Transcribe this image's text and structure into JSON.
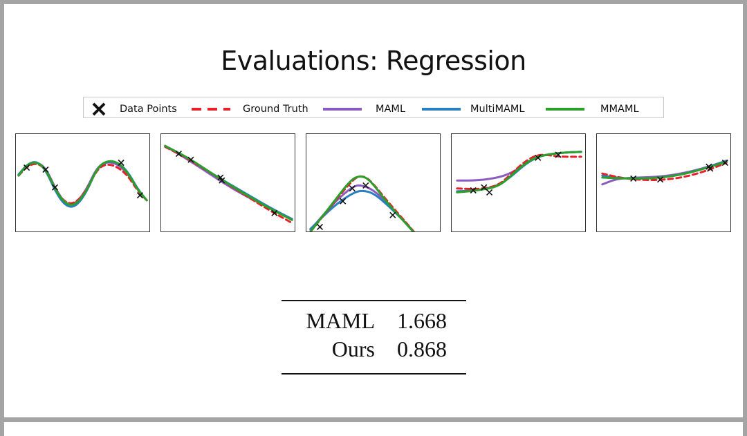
{
  "slide": {
    "title": "Evaluations: Regression"
  },
  "legend": {
    "items": [
      {
        "label": "Data Points",
        "marker": "x",
        "color": "#111111"
      },
      {
        "label": "Ground Truth",
        "marker": "dashed",
        "color": "#e8202a"
      },
      {
        "label": "MAML",
        "marker": "line",
        "color": "#8a5cc2"
      },
      {
        "label": "MultiMAML",
        "marker": "line",
        "color": "#2a7fc0"
      },
      {
        "label": "MMAML",
        "marker": "line",
        "color": "#2aa02a"
      }
    ]
  },
  "results": {
    "rows": [
      {
        "method": "MAML",
        "value": "1.668"
      },
      {
        "method": "Ours",
        "value": "0.868"
      }
    ]
  },
  "chart_data": [
    {
      "type": "line",
      "grid": false,
      "series": [
        {
          "name": "Ground Truth",
          "color": "#e8202a",
          "dash": true,
          "points": [
            [
              0.02,
              0.42
            ],
            [
              0.08,
              0.33
            ],
            [
              0.15,
              0.29
            ],
            [
              0.22,
              0.35
            ],
            [
              0.3,
              0.58
            ],
            [
              0.37,
              0.7
            ],
            [
              0.44,
              0.7
            ],
            [
              0.52,
              0.58
            ],
            [
              0.6,
              0.36
            ],
            [
              0.67,
              0.3
            ],
            [
              0.75,
              0.33
            ],
            [
              0.83,
              0.42
            ],
            [
              0.9,
              0.57
            ],
            [
              0.97,
              0.67
            ]
          ]
        },
        {
          "name": "MAML",
          "color": "#8a5cc2",
          "points": [
            [
              0.02,
              0.41
            ],
            [
              0.08,
              0.32
            ],
            [
              0.15,
              0.28
            ],
            [
              0.22,
              0.34
            ],
            [
              0.3,
              0.57
            ],
            [
              0.37,
              0.71
            ],
            [
              0.44,
              0.71
            ],
            [
              0.52,
              0.57
            ],
            [
              0.6,
              0.34
            ],
            [
              0.67,
              0.28
            ],
            [
              0.75,
              0.3
            ],
            [
              0.83,
              0.4
            ],
            [
              0.9,
              0.56
            ],
            [
              0.97,
              0.67
            ]
          ]
        },
        {
          "name": "MultiMAML",
          "color": "#2a7fc0",
          "points": [
            [
              0.02,
              0.41
            ],
            [
              0.08,
              0.31
            ],
            [
              0.15,
              0.27
            ],
            [
              0.22,
              0.36
            ],
            [
              0.3,
              0.6
            ],
            [
              0.37,
              0.73
            ],
            [
              0.44,
              0.74
            ],
            [
              0.52,
              0.6
            ],
            [
              0.6,
              0.35
            ],
            [
              0.67,
              0.28
            ],
            [
              0.75,
              0.28
            ],
            [
              0.83,
              0.38
            ],
            [
              0.9,
              0.55
            ],
            [
              0.97,
              0.67
            ]
          ]
        },
        {
          "name": "MMAML",
          "color": "#2aa02a",
          "points": [
            [
              0.02,
              0.42
            ],
            [
              0.08,
              0.31
            ],
            [
              0.15,
              0.28
            ],
            [
              0.22,
              0.35
            ],
            [
              0.3,
              0.58
            ],
            [
              0.37,
              0.71
            ],
            [
              0.44,
              0.72
            ],
            [
              0.52,
              0.59
            ],
            [
              0.6,
              0.35
            ],
            [
              0.67,
              0.27
            ],
            [
              0.75,
              0.28
            ],
            [
              0.83,
              0.39
            ],
            [
              0.9,
              0.56
            ],
            [
              0.97,
              0.67
            ]
          ]
        }
      ],
      "data_points": [
        [
          0.08,
          0.34
        ],
        [
          0.22,
          0.36
        ],
        [
          0.29,
          0.54
        ],
        [
          0.78,
          0.29
        ],
        [
          0.92,
          0.62
        ]
      ]
    },
    {
      "type": "line",
      "grid": false,
      "series": [
        {
          "name": "Ground Truth",
          "color": "#e8202a",
          "dash": true,
          "points": [
            [
              0.03,
              0.13
            ],
            [
              0.2,
              0.25
            ],
            [
              0.4,
              0.42
            ],
            [
              0.6,
              0.6
            ],
            [
              0.8,
              0.77
            ],
            [
              0.97,
              0.9
            ]
          ]
        },
        {
          "name": "MAML",
          "color": "#8a5cc2",
          "points": [
            [
              0.03,
              0.12
            ],
            [
              0.2,
              0.26
            ],
            [
              0.4,
              0.44
            ],
            [
              0.55,
              0.57
            ],
            [
              0.7,
              0.68
            ],
            [
              0.85,
              0.78
            ],
            [
              0.97,
              0.86
            ]
          ]
        },
        {
          "name": "MultiMAML",
          "color": "#2a7fc0",
          "points": [
            [
              0.03,
              0.12
            ],
            [
              0.2,
              0.24
            ],
            [
              0.4,
              0.42
            ],
            [
              0.6,
              0.58
            ],
            [
              0.8,
              0.74
            ],
            [
              0.97,
              0.86
            ]
          ]
        },
        {
          "name": "MMAML",
          "color": "#2aa02a",
          "points": [
            [
              0.03,
              0.12
            ],
            [
              0.2,
              0.24
            ],
            [
              0.4,
              0.42
            ],
            [
              0.6,
              0.59
            ],
            [
              0.8,
              0.75
            ],
            [
              0.97,
              0.87
            ]
          ]
        }
      ],
      "data_points": [
        [
          0.13,
          0.2
        ],
        [
          0.22,
          0.26
        ],
        [
          0.44,
          0.44
        ],
        [
          0.45,
          0.47
        ],
        [
          0.84,
          0.8
        ]
      ]
    },
    {
      "type": "line",
      "grid": false,
      "series": [
        {
          "name": "Ground Truth",
          "color": "#e8202a",
          "dash": true,
          "points": [
            [
              0.03,
              0.99
            ],
            [
              0.2,
              0.7
            ],
            [
              0.35,
              0.45
            ],
            [
              0.41,
              0.42
            ],
            [
              0.47,
              0.46
            ],
            [
              0.6,
              0.68
            ],
            [
              0.78,
              0.96
            ],
            [
              0.82,
              1.03
            ]
          ]
        },
        {
          "name": "MAML",
          "color": "#8a5cc2",
          "points": [
            [
              0.03,
              0.97
            ],
            [
              0.2,
              0.7
            ],
            [
              0.35,
              0.52
            ],
            [
              0.42,
              0.52
            ],
            [
              0.5,
              0.57
            ],
            [
              0.62,
              0.72
            ],
            [
              0.78,
              0.97
            ],
            [
              0.82,
              1.03
            ]
          ]
        },
        {
          "name": "MultiMAML",
          "color": "#2a7fc0",
          "points": [
            [
              0.03,
              0.96
            ],
            [
              0.2,
              0.73
            ],
            [
              0.35,
              0.59
            ],
            [
              0.42,
              0.57
            ],
            [
              0.5,
              0.6
            ],
            [
              0.62,
              0.74
            ],
            [
              0.78,
              0.96
            ],
            [
              0.82,
              1.03
            ]
          ]
        },
        {
          "name": "MMAML",
          "color": "#2aa02a",
          "points": [
            [
              0.03,
              0.99
            ],
            [
              0.2,
              0.69
            ],
            [
              0.33,
              0.46
            ],
            [
              0.4,
              0.42
            ],
            [
              0.47,
              0.46
            ],
            [
              0.6,
              0.7
            ],
            [
              0.78,
              0.97
            ],
            [
              0.82,
              1.03
            ]
          ]
        }
      ],
      "data_points": [
        [
          0.1,
          0.94
        ],
        [
          0.27,
          0.68
        ],
        [
          0.34,
          0.55
        ],
        [
          0.44,
          0.52
        ],
        [
          0.64,
          0.82
        ]
      ]
    },
    {
      "type": "line",
      "grid": false,
      "series": [
        {
          "name": "Ground Truth",
          "color": "#e8202a",
          "dash": true,
          "points": [
            [
              0.04,
              0.55
            ],
            [
              0.2,
              0.56
            ],
            [
              0.35,
              0.52
            ],
            [
              0.45,
              0.39
            ],
            [
              0.55,
              0.27
            ],
            [
              0.65,
              0.2
            ],
            [
              0.8,
              0.23
            ],
            [
              0.96,
              0.23
            ]
          ]
        },
        {
          "name": "MAML",
          "color": "#8a5cc2",
          "points": [
            [
              0.04,
              0.47
            ],
            [
              0.2,
              0.47
            ],
            [
              0.35,
              0.44
            ],
            [
              0.45,
              0.39
            ],
            [
              0.55,
              0.3
            ],
            [
              0.65,
              0.22
            ],
            [
              0.8,
              0.19
            ],
            [
              0.96,
              0.18
            ]
          ]
        },
        {
          "name": "MultiMAML",
          "color": "#2a7fc0",
          "points": [
            [
              0.04,
              0.58
            ],
            [
              0.2,
              0.57
            ],
            [
              0.35,
              0.52
            ],
            [
              0.45,
              0.42
            ],
            [
              0.55,
              0.3
            ],
            [
              0.65,
              0.22
            ],
            [
              0.8,
              0.19
            ],
            [
              0.96,
              0.18
            ]
          ]
        },
        {
          "name": "MMAML",
          "color": "#2aa02a",
          "points": [
            [
              0.04,
              0.59
            ],
            [
              0.2,
              0.57
            ],
            [
              0.35,
              0.53
            ],
            [
              0.45,
              0.41
            ],
            [
              0.55,
              0.29
            ],
            [
              0.65,
              0.22
            ],
            [
              0.8,
              0.19
            ],
            [
              0.96,
              0.18
            ]
          ]
        }
      ],
      "data_points": [
        [
          0.16,
          0.57
        ],
        [
          0.24,
          0.54
        ],
        [
          0.28,
          0.59
        ],
        [
          0.64,
          0.24
        ],
        [
          0.79,
          0.21
        ]
      ]
    },
    {
      "type": "line",
      "grid": false,
      "series": [
        {
          "name": "Ground Truth",
          "color": "#e8202a",
          "dash": true,
          "points": [
            [
              0.04,
              0.4
            ],
            [
              0.2,
              0.45
            ],
            [
              0.4,
              0.47
            ],
            [
              0.6,
              0.45
            ],
            [
              0.8,
              0.38
            ],
            [
              0.96,
              0.29
            ]
          ]
        },
        {
          "name": "MAML",
          "color": "#8a5cc2",
          "points": [
            [
              0.04,
              0.51
            ],
            [
              0.15,
              0.45
            ],
            [
              0.3,
              0.44
            ],
            [
              0.5,
              0.43
            ],
            [
              0.7,
              0.38
            ],
            [
              0.85,
              0.32
            ],
            [
              0.96,
              0.27
            ]
          ]
        },
        {
          "name": "MultiMAML",
          "color": "#2a7fc0",
          "points": [
            [
              0.04,
              0.42
            ],
            [
              0.2,
              0.45
            ],
            [
              0.4,
              0.45
            ],
            [
              0.6,
              0.42
            ],
            [
              0.8,
              0.35
            ],
            [
              0.96,
              0.27
            ]
          ]
        },
        {
          "name": "MMAML",
          "color": "#2aa02a",
          "points": [
            [
              0.04,
              0.44
            ],
            [
              0.2,
              0.45
            ],
            [
              0.4,
              0.45
            ],
            [
              0.6,
              0.42
            ],
            [
              0.8,
              0.35
            ],
            [
              0.96,
              0.28
            ]
          ]
        }
      ],
      "data_points": [
        [
          0.27,
          0.45
        ],
        [
          0.47,
          0.46
        ],
        [
          0.83,
          0.33
        ],
        [
          0.84,
          0.35
        ],
        [
          0.95,
          0.29
        ]
      ]
    }
  ]
}
